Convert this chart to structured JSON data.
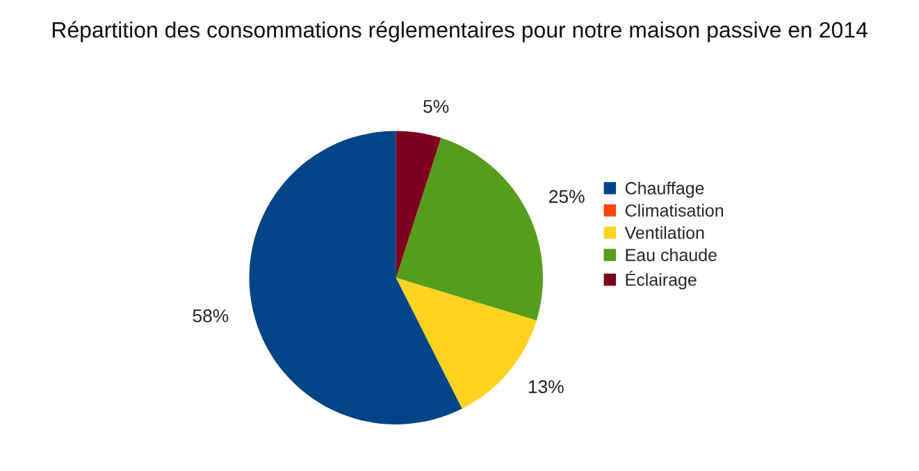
{
  "chart_data": {
    "type": "pie",
    "title": "Répartition des consommations réglementaires pour notre maison passive en 2014",
    "categories": [
      "Chauffage",
      "Climatisation",
      "Ventilation",
      "Eau chaude",
      "Éclairage"
    ],
    "values": [
      58,
      0,
      13,
      25,
      5
    ],
    "colors": [
      "#004586",
      "#ff420e",
      "#ffd320",
      "#579d1c",
      "#7e0021"
    ],
    "value_labels": [
      "58%",
      null,
      "13%",
      "25%",
      "5%"
    ],
    "legend": "right"
  }
}
